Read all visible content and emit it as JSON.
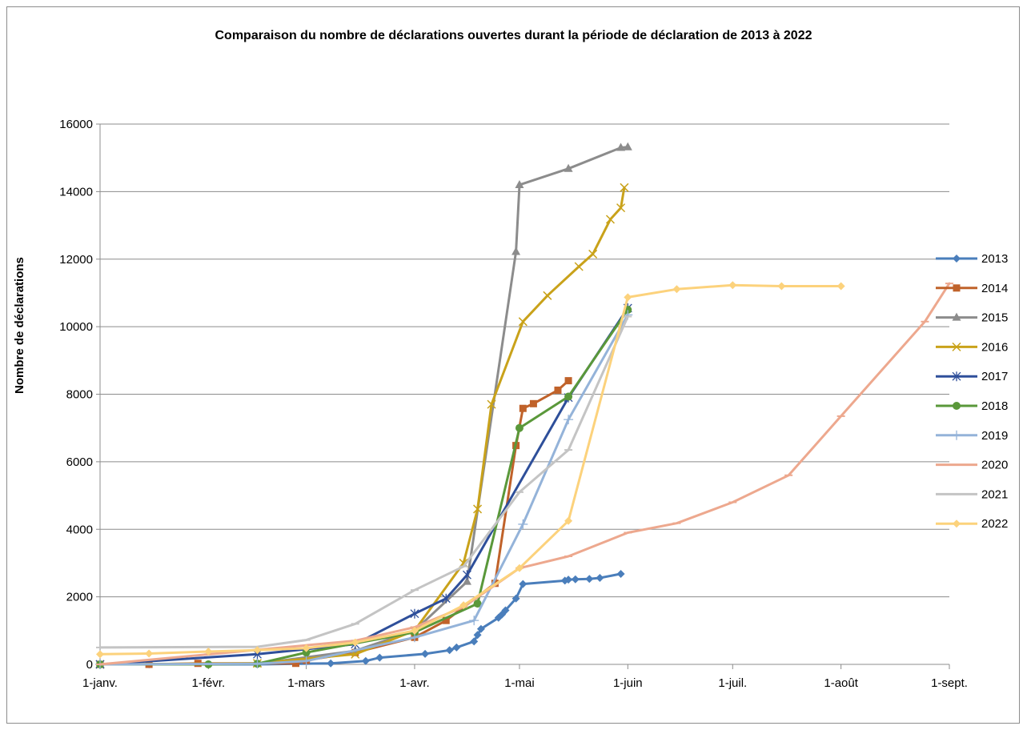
{
  "chart_data": {
    "type": "line",
    "title": "Comparaison du nombre de déclarations ouvertes durant la période de déclaration de 2013 à 2022",
    "xlabel": "",
    "ylabel": "Nombre de déclarations",
    "x_tick_labels": [
      "1-janv.",
      "1-févr.",
      "1-mars",
      "1-avr.",
      "1-mai",
      "1-juin",
      "1-juil.",
      "1-août",
      "1-sept."
    ],
    "x_ticks": [
      "01-01",
      "02-01",
      "03-01",
      "04-01",
      "05-01",
      "06-01",
      "07-01",
      "08-01",
      "09-01"
    ],
    "x_range": [
      "01-01",
      "09-01"
    ],
    "ylim": [
      0,
      16000
    ],
    "y_ticks": [
      0,
      2000,
      4000,
      6000,
      8000,
      10000,
      12000,
      14000,
      16000
    ],
    "grid": "horizontal",
    "legend_position": "right",
    "series": [
      {
        "name": "2013",
        "color": "#4a7ebb",
        "marker": "diamond",
        "points": [
          [
            "01-15",
            0
          ],
          [
            "02-15",
            0
          ],
          [
            "03-08",
            30
          ],
          [
            "03-18",
            100
          ],
          [
            "03-22",
            200
          ],
          [
            "04-04",
            310
          ],
          [
            "04-11",
            420
          ],
          [
            "04-13",
            500
          ],
          [
            "04-18",
            680
          ],
          [
            "04-19",
            870
          ],
          [
            "04-20",
            1050
          ],
          [
            "04-25",
            1380
          ],
          [
            "04-26",
            1480
          ],
          [
            "04-27",
            1600
          ],
          [
            "04-30",
            1950
          ],
          [
            "05-02",
            2380
          ],
          [
            "05-14",
            2480
          ],
          [
            "05-15",
            2510
          ],
          [
            "05-17",
            2520
          ],
          [
            "05-21",
            2530
          ],
          [
            "05-24",
            2560
          ],
          [
            "05-30",
            2680
          ]
        ]
      },
      {
        "name": "2014",
        "color": "#c0622a",
        "marker": "square",
        "points": [
          [
            "01-01",
            0
          ],
          [
            "01-15",
            0
          ],
          [
            "01-29",
            30
          ],
          [
            "02-26",
            30
          ],
          [
            "03-01",
            120
          ],
          [
            "03-15",
            350
          ],
          [
            "04-01",
            800
          ],
          [
            "04-10",
            1300
          ],
          [
            "04-24",
            2400
          ],
          [
            "04-30",
            6480
          ],
          [
            "05-02",
            7580
          ],
          [
            "05-05",
            7720
          ],
          [
            "05-12",
            8120
          ],
          [
            "05-15",
            8400
          ]
        ]
      },
      {
        "name": "2015",
        "color": "#8c8c8c",
        "marker": "triangle",
        "points": [
          [
            "01-01",
            0
          ],
          [
            "02-15",
            20
          ],
          [
            "03-15",
            400
          ],
          [
            "04-01",
            1000
          ],
          [
            "04-16",
            2450
          ],
          [
            "04-30",
            12220
          ],
          [
            "05-01",
            14200
          ],
          [
            "05-15",
            14680
          ],
          [
            "05-30",
            15300
          ],
          [
            "06-01",
            15320
          ]
        ]
      },
      {
        "name": "2016",
        "color": "#c9a21a",
        "marker": "x",
        "points": [
          [
            "01-01",
            0
          ],
          [
            "02-15",
            30
          ],
          [
            "03-15",
            300
          ],
          [
            "04-01",
            1000
          ],
          [
            "04-15",
            3000
          ],
          [
            "04-19",
            4600
          ],
          [
            "04-23",
            7700
          ],
          [
            "05-02",
            10150
          ],
          [
            "05-09",
            10920
          ],
          [
            "05-18",
            11780
          ],
          [
            "05-22",
            12150
          ],
          [
            "05-27",
            13180
          ],
          [
            "05-30",
            13520
          ],
          [
            "05-31",
            14120
          ]
        ]
      },
      {
        "name": "2017",
        "color": "#2e4f9a",
        "marker": "star",
        "points": [
          [
            "01-01",
            0
          ],
          [
            "02-15",
            300
          ],
          [
            "03-15",
            600
          ],
          [
            "04-01",
            1500
          ],
          [
            "04-10",
            1950
          ],
          [
            "04-16",
            2650
          ],
          [
            "05-15",
            7900
          ],
          [
            "06-01",
            10550
          ]
        ]
      },
      {
        "name": "2018",
        "color": "#5a983a",
        "marker": "circle",
        "points": [
          [
            "01-01",
            0
          ],
          [
            "02-01",
            0
          ],
          [
            "02-15",
            20
          ],
          [
            "03-01",
            350
          ],
          [
            "04-01",
            950
          ],
          [
            "04-19",
            1800
          ],
          [
            "05-01",
            7000
          ],
          [
            "05-15",
            7930
          ],
          [
            "06-01",
            10500
          ]
        ]
      },
      {
        "name": "2019",
        "color": "#94b3d9",
        "marker": "plus",
        "points": [
          [
            "01-01",
            0
          ],
          [
            "02-15",
            20
          ],
          [
            "03-01",
            100
          ],
          [
            "04-01",
            800
          ],
          [
            "04-18",
            1300
          ],
          [
            "05-02",
            4150
          ],
          [
            "05-15",
            7250
          ],
          [
            "06-01",
            10350
          ]
        ]
      },
      {
        "name": "2020",
        "color": "#eda88e",
        "marker": "dash",
        "points": [
          [
            "01-01",
            0
          ],
          [
            "03-15",
            700
          ],
          [
            "04-01",
            1100
          ],
          [
            "04-15",
            1700
          ],
          [
            "05-01",
            2850
          ],
          [
            "05-15",
            3200
          ],
          [
            "06-01",
            3900
          ],
          [
            "06-15",
            4180
          ],
          [
            "07-01",
            4800
          ],
          [
            "07-17",
            5600
          ],
          [
            "08-01",
            7350
          ],
          [
            "08-25",
            10150
          ],
          [
            "09-01",
            11280
          ]
        ]
      },
      {
        "name": "2021",
        "color": "#c4c4c4",
        "marker": "dash",
        "points": [
          [
            "01-01",
            500
          ],
          [
            "02-15",
            520
          ],
          [
            "03-01",
            720
          ],
          [
            "03-15",
            1200
          ],
          [
            "04-01",
            2200
          ],
          [
            "04-15",
            2900
          ],
          [
            "05-01",
            5100
          ],
          [
            "05-15",
            6350
          ],
          [
            "06-01",
            10300
          ]
        ]
      },
      {
        "name": "2022",
        "color": "#fcd27c",
        "marker": "diamond",
        "points": [
          [
            "01-01",
            300
          ],
          [
            "01-15",
            320
          ],
          [
            "02-01",
            380
          ],
          [
            "02-15",
            420
          ],
          [
            "03-01",
            480
          ],
          [
            "03-15",
            650
          ],
          [
            "04-01",
            1000
          ],
          [
            "04-15",
            1750
          ],
          [
            "05-01",
            2850
          ],
          [
            "05-15",
            4250
          ],
          [
            "06-01",
            10870
          ],
          [
            "06-15",
            11110
          ],
          [
            "07-01",
            11230
          ],
          [
            "07-15",
            11200
          ],
          [
            "08-01",
            11200
          ]
        ]
      }
    ]
  }
}
